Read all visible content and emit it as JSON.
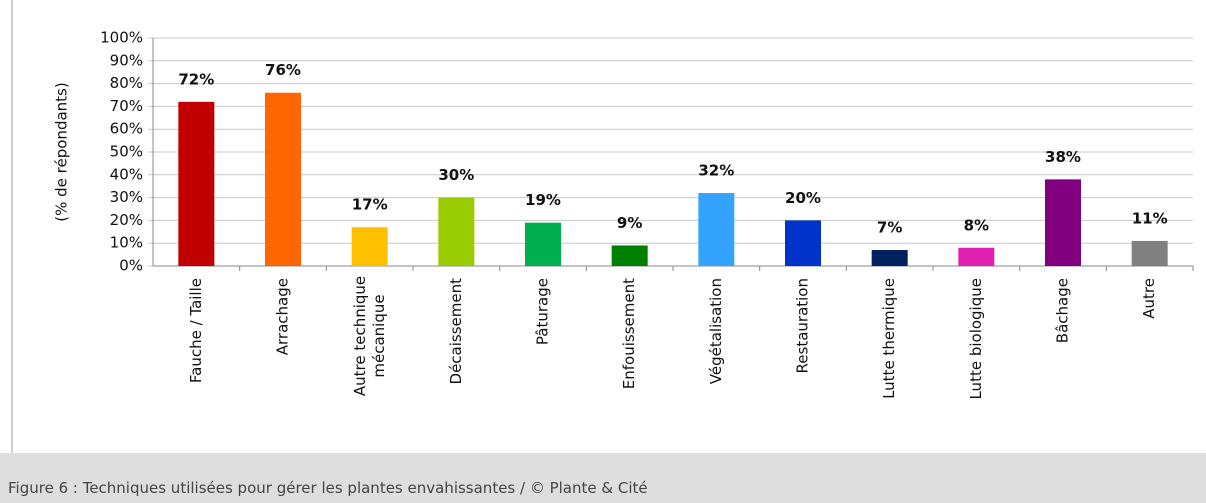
{
  "chart_data": {
    "type": "bar",
    "ylabel": "(% de répondants)",
    "categories": [
      "Fauche / Taille",
      "Arrachage",
      "Autre technique mécanique",
      "Décaissement",
      "Pâturage",
      "Enfouissement",
      "Végétalisation",
      "Restauration",
      "Lutte thermique",
      "Lutte biologique",
      "Bâchage",
      "Autre"
    ],
    "values": [
      72,
      76,
      17,
      30,
      19,
      9,
      32,
      20,
      7,
      8,
      38,
      11
    ],
    "value_labels": [
      "72%",
      "76%",
      "17%",
      "30%",
      "19%",
      "9%",
      "32%",
      "20%",
      "7%",
      "8%",
      "38%",
      "11%"
    ],
    "colors": [
      "#c00000",
      "#ff6600",
      "#ffc000",
      "#99cc00",
      "#00b050",
      "#008000",
      "#33a3ff",
      "#0033cc",
      "#002060",
      "#e020b0",
      "#800080",
      "#808080"
    ],
    "ylim": [
      0,
      100
    ],
    "yticks": [
      {
        "value": 0,
        "label": "0%"
      },
      {
        "value": 10,
        "label": "10%"
      },
      {
        "value": 20,
        "label": "20%"
      },
      {
        "value": 30,
        "label": "30%"
      },
      {
        "value": 40,
        "label": "40%"
      },
      {
        "value": 50,
        "label": "50%"
      },
      {
        "value": 60,
        "label": "60%"
      },
      {
        "value": 70,
        "label": "70%"
      },
      {
        "value": 80,
        "label": "80%"
      },
      {
        "value": 90,
        "label": "90%"
      },
      {
        "value": 100,
        "label": "100%"
      }
    ],
    "grid": true
  },
  "caption": "Figure 6 : Techniques utilisées pour gérer les plantes envahissantes / © Plante & Cité"
}
